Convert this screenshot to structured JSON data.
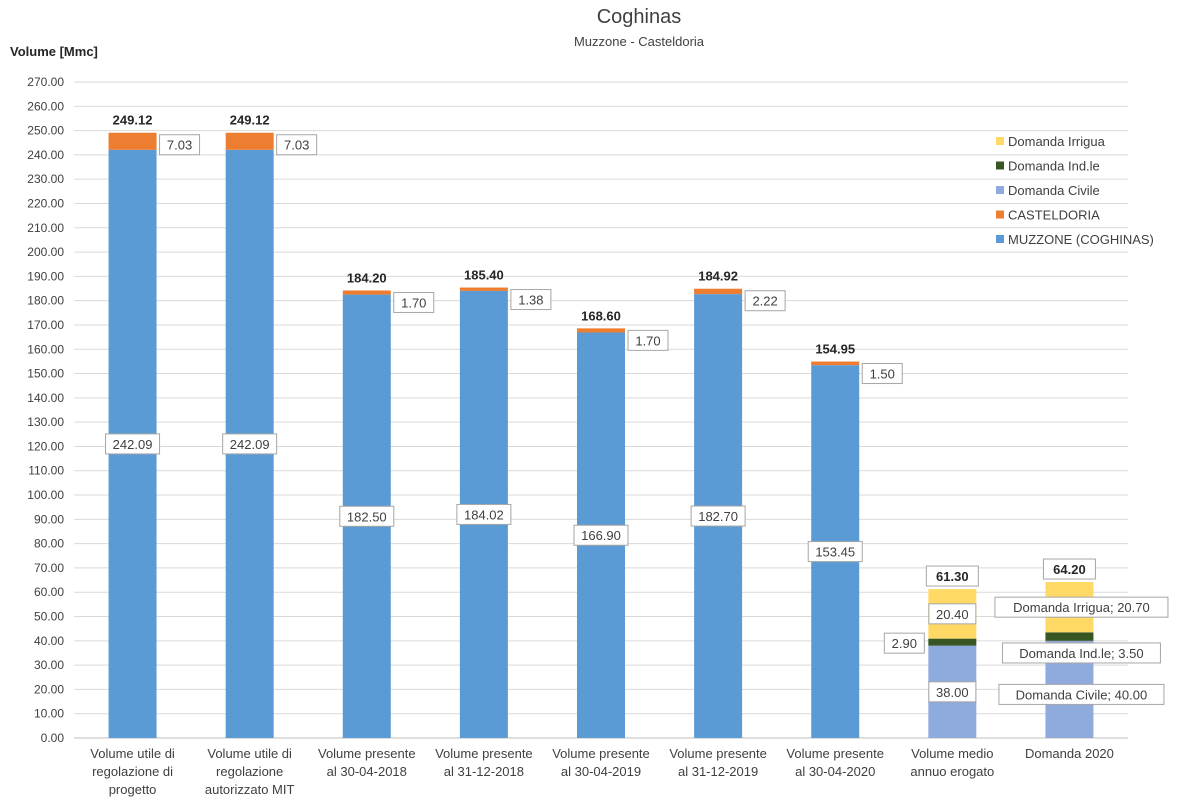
{
  "chart_data": {
    "type": "bar",
    "stacked": true,
    "title": "Coghinas",
    "subtitle": "Muzzone - Casteldoria",
    "ylabel": "Volume [Mmc]",
    "xlabel": "",
    "ylim": [
      0,
      270
    ],
    "ytick_step": 10,
    "grid": true,
    "legend_position": "top-right",
    "categories": [
      [
        "Volume utile di",
        "regolazione di",
        "progetto"
      ],
      [
        "Volume utile di",
        "regolazione",
        "autorizzato MIT"
      ],
      [
        "Volume presente",
        "al 30-04-2018"
      ],
      [
        "Volume presente",
        "al 31-12-2018"
      ],
      [
        "Volume presente",
        "al 30-04-2019"
      ],
      [
        "Volume presente",
        "al 31-12-2019"
      ],
      [
        "Volume presente",
        "al 30-04-2020"
      ],
      [
        "Volume medio",
        "annuo erogato"
      ],
      [
        "Domanda 2020"
      ]
    ],
    "series": [
      {
        "name": "MUZZONE (COGHINAS)",
        "color": "#5b9bd5",
        "values": [
          242.09,
          242.09,
          182.5,
          184.02,
          166.9,
          182.7,
          153.45,
          null,
          null
        ],
        "labels": [
          "242.09",
          "242.09",
          "182.50",
          "184.02",
          "166.90",
          "182.70",
          "153.45",
          "",
          ""
        ]
      },
      {
        "name": "CASTELDORIA",
        "color": "#ed7d31",
        "values": [
          7.03,
          7.03,
          1.7,
          1.38,
          1.7,
          2.22,
          1.5,
          null,
          null
        ],
        "labels": [
          "7.03",
          "7.03",
          "1.70",
          "1.38",
          "1.70",
          "2.22",
          "1.50",
          "",
          ""
        ]
      },
      {
        "name": "Domanda Civile",
        "color": "#8faadc",
        "values": [
          null,
          null,
          null,
          null,
          null,
          null,
          null,
          38.0,
          40.0
        ],
        "labels": [
          "",
          "",
          "",
          "",
          "",
          "",
          "",
          "38.00",
          "Domanda Civile; 40.00"
        ]
      },
      {
        "name": "Domanda Ind.le",
        "color": "#375623",
        "values": [
          null,
          null,
          null,
          null,
          null,
          null,
          null,
          2.9,
          3.5
        ],
        "labels": [
          "",
          "",
          "",
          "",
          "",
          "",
          "",
          "2.90",
          "Domanda Ind.le; 3.50"
        ]
      },
      {
        "name": "Domanda Irrigua",
        "color": "#ffd966",
        "values": [
          null,
          null,
          null,
          null,
          null,
          null,
          null,
          20.4,
          20.7
        ],
        "labels": [
          "",
          "",
          "",
          "",
          "",
          "",
          "",
          "20.40",
          "Domanda Irrigua; 20.70"
        ]
      }
    ],
    "totals": [
      "249.12",
      "249.12",
      "184.20",
      "185.40",
      "168.60",
      "184.92",
      "154.95",
      "61.30",
      "64.20"
    ],
    "legend_order": [
      "Domanda Irrigua",
      "Domanda Ind.le",
      "Domanda Civile",
      "CASTELDORIA",
      "MUZZONE (COGHINAS)"
    ]
  }
}
